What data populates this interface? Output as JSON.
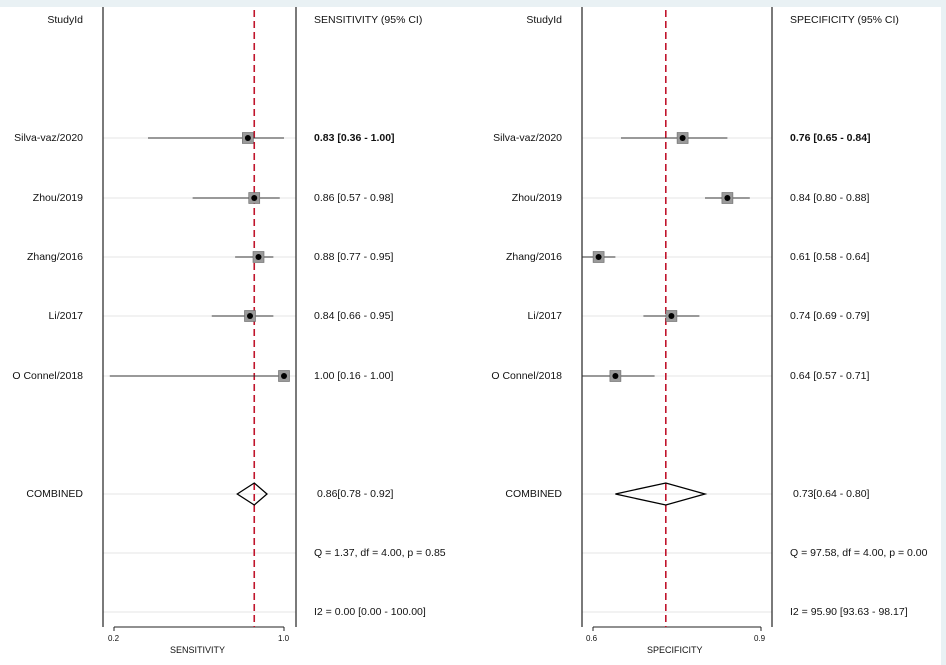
{
  "colors": {
    "reference_line": "#c0142c",
    "box_fill": "#9a9a9a",
    "row_line": "#e6e6e6",
    "background": "#e9f1f4"
  },
  "chart_data": [
    {
      "type": "forest",
      "column_study_header": "StudyId",
      "column_value_header": "SENSITIVITY (95% CI)",
      "xlabel": "SENSITIVITY",
      "xlim": [
        0.2,
        1.0
      ],
      "xticks": [
        "0.2",
        "1.0"
      ],
      "reference_line": 0.86,
      "studies": [
        {
          "name": "Silva-vaz/2020",
          "estimate": 0.83,
          "lower": 0.36,
          "upper": 1.0,
          "label": "0.83 [0.36 - 1.00]"
        },
        {
          "name": "Zhou/2019",
          "estimate": 0.86,
          "lower": 0.57,
          "upper": 0.98,
          "label": "0.86 [0.57 - 0.98]"
        },
        {
          "name": "Zhang/2016",
          "estimate": 0.88,
          "lower": 0.77,
          "upper": 0.95,
          "label": "0.88 [0.77 - 0.95]"
        },
        {
          "name": "Li/2017",
          "estimate": 0.84,
          "lower": 0.66,
          "upper": 0.95,
          "label": "0.84 [0.66 - 0.95]"
        },
        {
          "name": "O Connel/2018",
          "estimate": 1.0,
          "lower": 0.16,
          "upper": 1.0,
          "label": "1.00 [0.16 - 1.00]"
        }
      ],
      "combined": {
        "name": "COMBINED",
        "estimate": 0.86,
        "lower": 0.78,
        "upper": 0.92,
        "label": "0.86[0.78 - 0.92]"
      },
      "heterogeneity_q": "Q =  1.37, df = 4.00, p =  0.85",
      "heterogeneity_i2": "I2 = 0.00 [0.00 - 100.00]"
    },
    {
      "type": "forest",
      "column_study_header": "StudyId",
      "column_value_header": "SPECIFICITY (95% CI)",
      "xlabel": "SPECIFICITY",
      "xlim": [
        0.6,
        0.9
      ],
      "xticks": [
        "0.6",
        "0.9"
      ],
      "reference_line": 0.73,
      "studies": [
        {
          "name": "Silva-vaz/2020",
          "estimate": 0.76,
          "lower": 0.65,
          "upper": 0.84,
          "label": "0.76 [0.65 - 0.84]"
        },
        {
          "name": "Zhou/2019",
          "estimate": 0.84,
          "lower": 0.8,
          "upper": 0.88,
          "label": "0.84 [0.80 - 0.88]"
        },
        {
          "name": "Zhang/2016",
          "estimate": 0.61,
          "lower": 0.58,
          "upper": 0.64,
          "label": "0.61 [0.58 - 0.64]"
        },
        {
          "name": "Li/2017",
          "estimate": 0.74,
          "lower": 0.69,
          "upper": 0.79,
          "label": "0.74 [0.69 - 0.79]"
        },
        {
          "name": "O Connel/2018",
          "estimate": 0.64,
          "lower": 0.57,
          "upper": 0.71,
          "label": "0.64 [0.57 - 0.71]"
        }
      ],
      "combined": {
        "name": "COMBINED",
        "estimate": 0.73,
        "lower": 0.64,
        "upper": 0.8,
        "label": "0.73[0.64 - 0.80]"
      },
      "heterogeneity_q": "Q = 97.58, df = 4.00, p =  0.00",
      "heterogeneity_i2": "I2 = 95.90 [93.63 - 98.17]"
    }
  ]
}
